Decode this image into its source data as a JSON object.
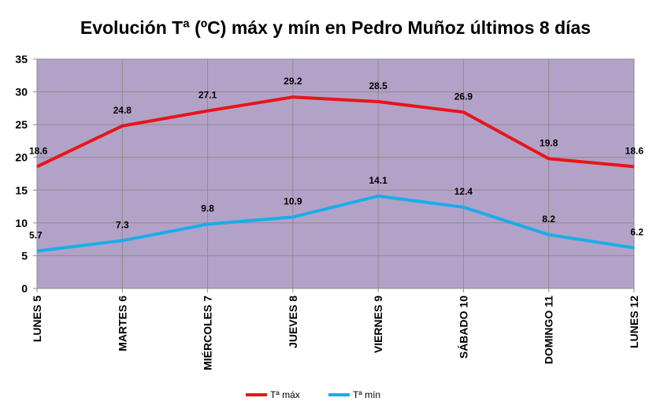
{
  "chart_data": {
    "type": "line",
    "title": "Evolución Tª (ºC) máx y mín en Pedro Muñoz últimos 8 días",
    "xlabel": "",
    "ylabel": "",
    "categories": [
      "LUNES 5",
      "MARTES 6",
      "MIÉRCOLES 7",
      "JUEVES 8",
      "VIERNES 9",
      "SÁBADO 10",
      "DOMINGO 11",
      "LUNES 12"
    ],
    "ylim": [
      0,
      35
    ],
    "yticks": [
      0,
      5,
      10,
      15,
      20,
      25,
      30,
      35
    ],
    "grid": true,
    "plot_background": "#B3A2C7",
    "legend_position": "bottom",
    "series": [
      {
        "name": "Tª máx",
        "color": "#E8141A",
        "values": [
          18.6,
          24.8,
          27.1,
          29.2,
          28.5,
          26.9,
          19.8,
          18.6
        ],
        "labels": [
          "18.6",
          "24.8",
          "27.1",
          "29.2",
          "28.5",
          "26.9",
          "19.8",
          "18.6"
        ]
      },
      {
        "name": "Tª mín",
        "color": "#1AACE8",
        "values": [
          5.7,
          7.3,
          9.8,
          10.9,
          14.1,
          12.4,
          8.2,
          6.2
        ],
        "labels": [
          "5.7",
          "7.3",
          "9.8",
          "10.9",
          "14.1",
          "12.4",
          "8.2",
          "6.2"
        ]
      }
    ]
  }
}
